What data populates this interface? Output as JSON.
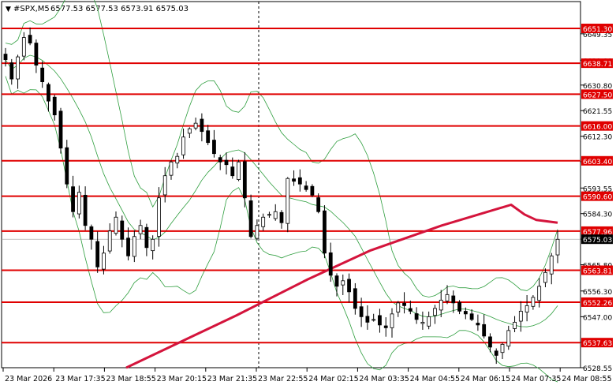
{
  "header": {
    "symbol": "#SPX,M5",
    "ohlc": "6577.53 6577.53 6573.91 6575.03"
  },
  "y_axis_ticks": [
    "6649.35",
    "6639.80",
    "6630.80",
    "6621.55",
    "6612.30",
    "6603.05",
    "6593.55",
    "6584.30",
    "6575.05",
    "6565.80",
    "6556.30",
    "6547.00",
    "6537.75",
    "6528.55"
  ],
  "x_axis_ticks": [
    "23 Mar 2026",
    "23 Mar 17:35",
    "23 Mar 18:55",
    "23 Mar 20:15",
    "23 Mar 21:35",
    "23 Mar 22:55",
    "24 Mar 02:15",
    "24 Mar 03:35",
    "24 Mar 04:55",
    "24 Mar 06:15",
    "24 Mar 07:35",
    "24 Mar 08:55"
  ],
  "levels": [
    {
      "label": "6651.30",
      "value": 6651.3
    },
    {
      "label": "6638.71",
      "value": 6638.71
    },
    {
      "label": "6627.50",
      "value": 6627.5
    },
    {
      "label": "6616.00",
      "value": 6616.0
    },
    {
      "label": "6603.40",
      "value": 6603.4
    },
    {
      "label": "6590.60",
      "value": 6590.6
    },
    {
      "label": "6577.96",
      "value": 6577.96
    },
    {
      "label": "6563.81",
      "value": 6563.81
    },
    {
      "label": "6552.26",
      "value": 6552.26
    },
    {
      "label": "6537.63",
      "value": 6537.63
    }
  ],
  "current_price_label": "6575.03",
  "colors": {
    "level_line": "#e00000",
    "ma_line": "#d4143c",
    "bands": "#2e9e3e",
    "candle": "#000000",
    "price_tag": "#000000"
  },
  "chart_data": {
    "type": "candlestick",
    "symbol": "#SPX",
    "timeframe": "M5",
    "ylim": [
      6526,
      6656
    ],
    "close_series": [
      6640,
      6633,
      6641,
      6648,
      6646,
      6638,
      6632,
      6625,
      6620,
      6608,
      6595,
      6585,
      6592,
      6580,
      6575,
      6565,
      6570,
      6578,
      6583,
      6575,
      6569,
      6576,
      6580,
      6572,
      6575,
      6590,
      6598,
      6603,
      6605,
      6612,
      6615,
      6617,
      6614,
      6610,
      6606,
      6603,
      6602,
      6598,
      6603,
      6590,
      6576,
      6580,
      6583,
      6584,
      6585,
      6581,
      6597,
      6596,
      6595,
      6593,
      6591,
      6585,
      6570,
      6562,
      6558,
      6560,
      6556,
      6550,
      6547,
      6545,
      6546,
      6544,
      6543,
      6548,
      6552,
      6551,
      6549,
      6546,
      6545,
      6547,
      6550,
      6553,
      6555,
      6552,
      6549,
      6548,
      6546,
      6544,
      6540,
      6536,
      6533,
      6537,
      6542,
      6545,
      6549,
      6551,
      6554,
      6558,
      6563,
      6569,
      6575
    ]
  }
}
